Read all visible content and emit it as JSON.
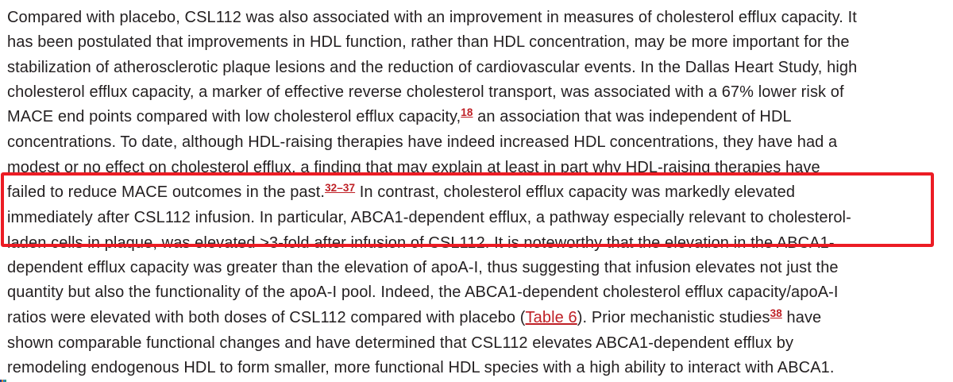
{
  "page": {
    "background": "#ffffff",
    "text_color": "#231f20",
    "link_color": "#bf2026",
    "highlight_box_color": "#ec1c24"
  },
  "annotation": {
    "type": "highlight-box",
    "color": "#ec1c24",
    "note": "red rectangle drawn around lines 8-10 of the paragraph"
  },
  "paragraph": {
    "lines": [
      [
        {
          "text": "Compared with placebo, CSL112 was also associated with an improvement in measures of cholesterol efflux capacity. It"
        }
      ],
      [
        {
          "text": "has been postulated that improvements in HDL function, rather than HDL concentration, may be more important for the"
        }
      ],
      [
        {
          "text": "stabilization of atherosclerotic plaque lesions and the reduction of cardiovascular events. In the Dallas Heart Study, high"
        }
      ],
      [
        {
          "text": "cholesterol efflux capacity, a marker of effective reverse cholesterol transport, was associated with a 67% lower risk of"
        }
      ],
      [
        {
          "text": "MACE end points compared with low cholesterol efflux capacity,"
        },
        {
          "text": "18",
          "kind": "suplink",
          "name": "reference-link-18"
        },
        {
          "text": " an association that was independent of HDL"
        }
      ],
      [
        {
          "text": "concentrations. To date, although HDL-raising therapies have indeed increased HDL concentrations, they have had a"
        }
      ],
      [
        {
          "text": "modest or no effect on cholesterol efflux, a finding that may explain at least in part why HDL-raising therapies have"
        }
      ],
      [
        {
          "text": "failed to reduce MACE outcomes in the past."
        },
        {
          "text": "32–37",
          "kind": "suplink",
          "name": "reference-link-32-37"
        },
        {
          "text": " In contrast, cholesterol efflux capacity was markedly elevated"
        }
      ],
      [
        {
          "text": "immediately after CSL112 infusion. In particular, ABCA1-dependent efflux, a pathway especially relevant to cholesterol-"
        }
      ],
      [
        {
          "text": "laden cells in plaque, was elevated >3-fold after infusion of CSL112. It is noteworthy that the elevation in the ABCA1-"
        }
      ],
      [
        {
          "text": "dependent efflux capacity was greater than the elevation of apoA-I, thus suggesting that infusion elevates not just the"
        }
      ],
      [
        {
          "text": "quantity but also the functionality of the apoA-I pool. Indeed, the ABCA1-dependent cholesterol efflux capacity/apoA-I"
        }
      ],
      [
        {
          "text": "ratios were elevated with both doses of CSL112 compared with placebo ("
        },
        {
          "text": "Table 6",
          "kind": "link",
          "name": "table-6-link"
        },
        {
          "text": "). Prior mechanistic studies"
        },
        {
          "text": "38",
          "kind": "suplink",
          "name": "reference-link-38"
        },
        {
          "text": " have"
        }
      ],
      [
        {
          "text": "shown comparable functional changes and have determined that CSL112 elevates ABCA1-dependent efflux by"
        }
      ],
      [
        {
          "text": "remodeling endogenous HDL to form smaller, more functional HDL species with a high ability to interact with ABCA1."
        }
      ]
    ]
  },
  "clipped_fragment": {
    "description": "tiny multicolored sliver of a clipped element at the bottom-left screenshot edge",
    "colors": [
      "#1f3d99",
      "#d98a2b",
      "#2f7fd6",
      "#2e9e7a"
    ]
  }
}
